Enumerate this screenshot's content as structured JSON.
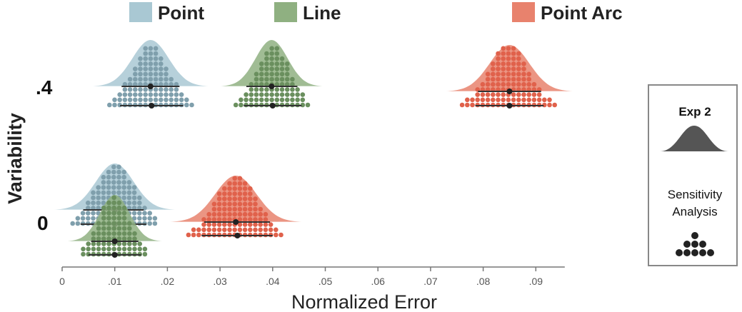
{
  "chart_data": {
    "type": "ridgeline-dotplot",
    "legend": [
      {
        "name": "Point",
        "color": "#a9c8d3",
        "dot_color": "#7f9fac"
      },
      {
        "name": "Line",
        "color": "#8fb081",
        "dot_color": "#6a8f5e"
      },
      {
        "name": "Point Arc",
        "color": "#e8826d",
        "dot_color": "#e0614b"
      }
    ],
    "xlabel": "Normalized Error",
    "ylabel": "Variability",
    "xlim": [
      0,
      0.095
    ],
    "xticks": [
      {
        "value": 0,
        "label": "0"
      },
      {
        "value": 0.01,
        "label": ".01"
      },
      {
        "value": 0.02,
        "label": ".02"
      },
      {
        "value": 0.03,
        "label": ".03"
      },
      {
        "value": 0.04,
        "label": ".04"
      },
      {
        "value": 0.05,
        "label": ".05"
      },
      {
        "value": 0.06,
        "label": ".06"
      },
      {
        "value": 0.07,
        "label": ".07"
      },
      {
        "value": 0.08,
        "label": ".08"
      },
      {
        "value": 0.09,
        "label": ".09"
      }
    ],
    "variability_levels": [
      {
        "label": ".4",
        "key": "high"
      },
      {
        "label": "0",
        "key": "zero"
      }
    ],
    "series": [
      {
        "name": "Point",
        "variability": ".4",
        "exp2_mean": 0.0168,
        "exp2_ci": [
          0.0113,
          0.0223
        ],
        "sens_mean": 0.017,
        "sens_ci": [
          0.011,
          0.023
        ],
        "range": [
          0.009,
          0.025
        ]
      },
      {
        "name": "Line",
        "variability": ".4",
        "exp2_mean": 0.0398,
        "exp2_ci": [
          0.035,
          0.0447
        ],
        "sens_mean": 0.04,
        "sens_ci": [
          0.0345,
          0.0455
        ],
        "range": [
          0.033,
          0.0465
        ]
      },
      {
        "name": "Point Arc",
        "variability": ".4",
        "exp2_mean": 0.085,
        "exp2_ci": [
          0.079,
          0.091
        ],
        "sens_mean": 0.085,
        "sens_ci": [
          0.0785,
          0.0915
        ],
        "range": [
          0.076,
          0.094
        ]
      },
      {
        "name": "Point",
        "variability": "0",
        "exp2_mean": 0.01,
        "exp2_ci": [
          0.004,
          0.0155
        ],
        "sens_mean": 0.01,
        "sens_ci": [
          0.0035,
          0.016
        ],
        "range": [
          0.002,
          0.0175
        ]
      },
      {
        "name": "Line",
        "variability": "0",
        "exp2_mean": 0.01,
        "exp2_ci": [
          0.0055,
          0.0145
        ],
        "sens_mean": 0.01,
        "sens_ci": [
          0.005,
          0.015
        ],
        "range": [
          0.004,
          0.016
        ]
      },
      {
        "name": "Point Arc",
        "variability": "0",
        "exp2_mean": 0.033,
        "exp2_ci": [
          0.027,
          0.0395
        ],
        "sens_mean": 0.0333,
        "sens_ci": [
          0.0265,
          0.04
        ],
        "range": [
          0.024,
          0.042
        ]
      }
    ]
  },
  "side_legend": {
    "title": "Exp 2",
    "label_line1": "Sensitivity",
    "label_line2": "Analysis"
  }
}
